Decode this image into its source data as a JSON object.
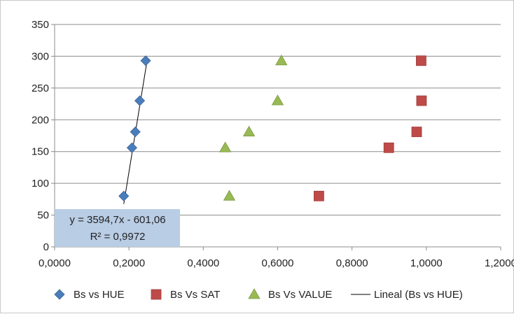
{
  "chart_data": {
    "type": "scatter",
    "title": "",
    "xlabel": "",
    "ylabel": "",
    "xlim": [
      0,
      1.2
    ],
    "ylim": [
      0,
      350
    ],
    "x_ticks": [
      "0,0000",
      "0,2000",
      "0,4000",
      "0,6000",
      "0,8000",
      "1,0000",
      "1,2000"
    ],
    "y_ticks": [
      "0",
      "50",
      "100",
      "150",
      "200",
      "250",
      "300",
      "350"
    ],
    "grid": "horizontal",
    "legend_position": "bottom",
    "series": [
      {
        "name": "Bs vs HUE",
        "marker": "diamond",
        "color": "#4a7ebb",
        "points": [
          {
            "x": 0.186,
            "y": 80
          },
          {
            "x": 0.208,
            "y": 156
          },
          {
            "x": 0.217,
            "y": 181
          },
          {
            "x": 0.229,
            "y": 230
          },
          {
            "x": 0.245,
            "y": 293
          }
        ]
      },
      {
        "name": "Bs Vs SAT",
        "marker": "square",
        "color": "#be4b48",
        "points": [
          {
            "x": 0.711,
            "y": 80
          },
          {
            "x": 0.899,
            "y": 156
          },
          {
            "x": 0.974,
            "y": 181
          },
          {
            "x": 0.987,
            "y": 230
          },
          {
            "x": 0.986,
            "y": 293
          }
        ]
      },
      {
        "name": "Bs Vs VALUE",
        "marker": "triangle",
        "color": "#98b954",
        "points": [
          {
            "x": 0.47,
            "y": 80
          },
          {
            "x": 0.459,
            "y": 156
          },
          {
            "x": 0.523,
            "y": 181
          },
          {
            "x": 0.6,
            "y": 230
          },
          {
            "x": 0.61,
            "y": 293
          }
        ]
      }
    ],
    "trendline": {
      "name": "Lineal (Bs vs HUE)",
      "color": "#000000",
      "x_from": 0.186,
      "x_to": 0.249,
      "slope": 3594.7,
      "intercept": -601.06
    },
    "annotation": {
      "equation": "y = 3594,7x - 601,06",
      "r_squared": "R² = 0,9972",
      "background": "#b9cde5"
    }
  }
}
